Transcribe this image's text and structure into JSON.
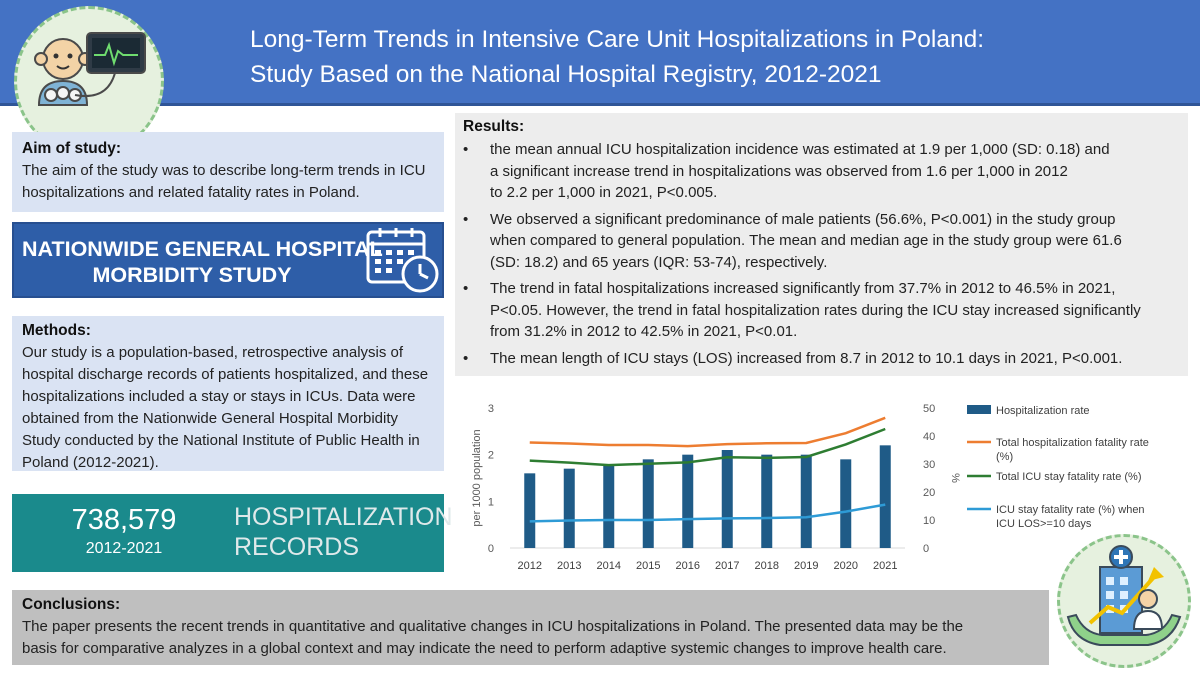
{
  "header": {
    "title_line1": "Long-Term Trends in Intensive Care Unit Hospitalizations in Poland:",
    "title_line2": "Study Based on the National Hospital Registry, 2012-2021"
  },
  "aim": {
    "title": "Aim of study:",
    "text": "The aim of the study was to describe long-term trends in ICU hospitalizations and related fatality rates in Poland."
  },
  "study_banner": {
    "line1": "NATIONWIDE GENERAL HOSPITAL",
    "line2": "MORBIDITY STUDY"
  },
  "methods": {
    "title": "Methods:",
    "text": "Our study is a population-based, retrospective analysis of hospital discharge records of patients hospitalized, and these hospitalizations included a stay or stays  in ICUs. Data were obtained from the Nationwide General Hospital Morbidity Study conducted by the National Institute of Public Health in Poland (2012-2021)."
  },
  "records": {
    "count": "738,579",
    "years": "2012-2021",
    "label_line1": "HOSPITALIZATION",
    "label_line2": "RECORDS"
  },
  "results": {
    "title": "Results:",
    "bullets": [
      {
        "lines": [
          "the mean annual ICU hospitalization incidence was estimated at 1.9 per 1,000 (SD: 0.18) and",
          "a significant increase trend in hospitalizations was observed from 1.6 per 1,000 in 2012",
          "to 2.2 per 1,000 in 2021, P<0.005."
        ]
      },
      {
        "lines": [
          "We observed a significant predominance of male patients (56.6%, P<0.001) in the study group",
          "when compared to general population. The mean and median age in the study group were 61.6",
          "(SD: 18.2) and 65 years (IQR: 53-74), respectively."
        ]
      },
      {
        "lines": [
          "The trend in fatal hospitalizations increased significantly from 37.7% in 2012 to 46.5% in 2021,",
          "P<0.05. However, the trend in fatal hospitalization rates during the ICU stay increased significantly",
          "from 31.2% in 2012 to 42.5% in 2021, P<0.01."
        ]
      },
      {
        "lines": [
          "The mean length of ICU stays (LOS)  increased from 8.7 in 2012 to 10.1 days in 2021, P<0.001."
        ]
      }
    ]
  },
  "conclusions": {
    "title": "Conclusions:",
    "line1": "The paper presents the recent trends in quantitative and qualitative changes in ICU hospitalizations in Poland. The presented data may be the",
    "line2": "basis for comparative analyzes in a global context and may indicate the need to perform adaptive systemic changes to improve health care."
  },
  "colors": {
    "header_bg": "#4472c4",
    "panel_blue": "#dae3f3",
    "banner_blue": "#2e5ea8",
    "teal": "#1a8a8c",
    "results_bg": "#ededed",
    "conclusions_bg": "#bfbfbf",
    "bar": "#1f5b87",
    "orange": "#ed7d31",
    "green": "#2e7d32",
    "light_blue": "#2e9bd6"
  },
  "icons": [
    "baby-monitor-icon",
    "calendar-clock-icon",
    "hospital-growth-icon"
  ],
  "chart_data": {
    "type": "bar",
    "categories": [
      "2012",
      "2013",
      "2014",
      "2015",
      "2016",
      "2017",
      "2018",
      "2019",
      "2020",
      "2021"
    ],
    "ylabel": "per 1000 population",
    "y2label": "%",
    "ylim": [
      0,
      3
    ],
    "y2lim": [
      0,
      50
    ],
    "yticks": [
      "0",
      "1",
      "2",
      "3"
    ],
    "y2ticks": [
      "0",
      "10",
      "20",
      "30",
      "40",
      "50"
    ],
    "legend_position": "right",
    "grid": false,
    "series": [
      {
        "name": "Hospitalization rate",
        "type": "bar",
        "axis": "left",
        "color": "#1f5b87",
        "values": [
          1.6,
          1.7,
          1.8,
          1.9,
          2.0,
          2.1,
          2.0,
          2.0,
          1.9,
          2.2
        ]
      },
      {
        "name": "Total hospitalization fatality rate (%)",
        "type": "line",
        "axis": "right",
        "color": "#ed7d31",
        "values": [
          37.7,
          37.3,
          36.8,
          36.8,
          36.4,
          37.1,
          37.4,
          37.5,
          41.0,
          46.5
        ]
      },
      {
        "name": "Total ICU stay fatality rate (%)",
        "type": "line",
        "axis": "right",
        "color": "#2e7d32",
        "values": [
          31.2,
          30.5,
          29.6,
          30.1,
          30.6,
          32.4,
          32.2,
          32.5,
          37.0,
          42.5
        ]
      },
      {
        "name": "ICU stay fatality rate (%) when ICU LOS>=10 days",
        "type": "line",
        "axis": "right",
        "color": "#2e9bd6",
        "values": [
          9.5,
          9.8,
          10.0,
          10.0,
          10.3,
          10.6,
          10.7,
          11.0,
          13.0,
          15.5
        ]
      }
    ]
  }
}
